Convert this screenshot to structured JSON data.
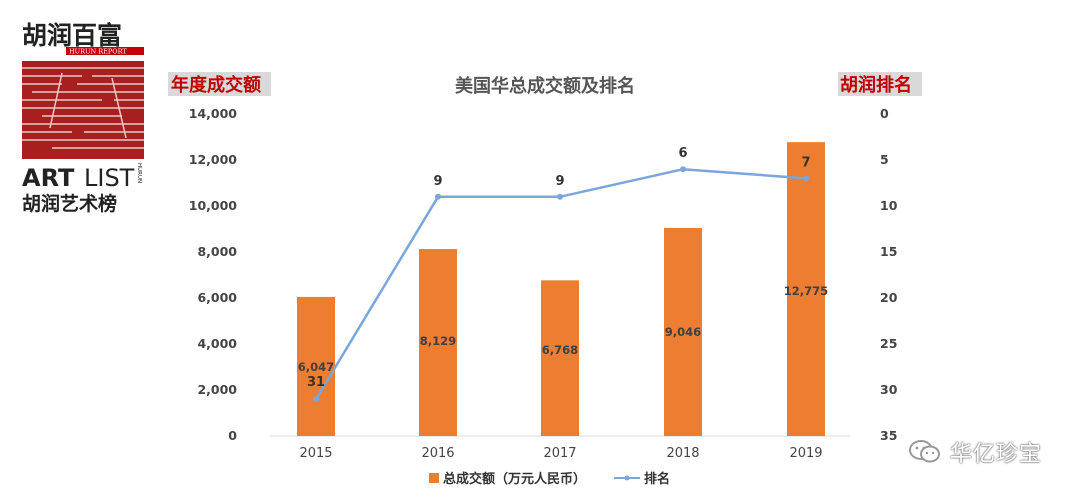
{
  "logo": {
    "cn_title": "胡润百富",
    "en_report": "HURUN REPORT",
    "art": "ART",
    "list": "LIST",
    "hurun_vertical": "HURUN",
    "cn_list": "胡润艺术榜"
  },
  "watermark": {
    "text": "华亿珍宝",
    "icon": "wechat-icon"
  },
  "colors": {
    "bar": "#ed7d31",
    "line": "#7aa6db",
    "axis_title": "#c00000"
  },
  "chart_data": {
    "type": "bar",
    "title": "美国华总成交额及排名",
    "ylabel_left": "年度成交额",
    "ylabel_right": "胡润排名",
    "categories": [
      "2015",
      "2016",
      "2017",
      "2018",
      "2019"
    ],
    "y_left_ticks": [
      "0",
      "2,000",
      "4,000",
      "6,000",
      "8,000",
      "10,000",
      "12,000",
      "14,000"
    ],
    "y_right_ticks": [
      "0",
      "5",
      "10",
      "15",
      "20",
      "25",
      "30",
      "35"
    ],
    "ylim_left": [
      0,
      14000
    ],
    "ylim_right": [
      0,
      35
    ],
    "right_axis_inverted": true,
    "series": [
      {
        "name": "总成交额（万元人民币）",
        "type": "bar",
        "axis": "left",
        "values": [
          6047,
          8129,
          6768,
          9046,
          12775
        ],
        "labels": [
          "6,047",
          "8,129",
          "6,768",
          "9,046",
          "12,775"
        ]
      },
      {
        "name": "排名",
        "type": "line",
        "axis": "right",
        "values": [
          31,
          9,
          9,
          6,
          7
        ],
        "labels": [
          "31",
          "9",
          "9",
          "6",
          "7"
        ]
      }
    ],
    "legend_position": "bottom",
    "grid": false
  }
}
